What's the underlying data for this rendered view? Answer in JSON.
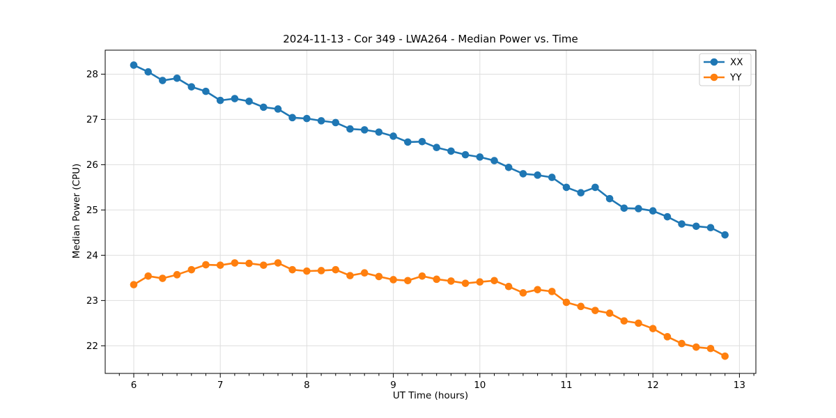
{
  "chart_data": {
    "type": "line",
    "title": "2024-11-13 - Cor 349 - LWA264 - Median Power vs. Time",
    "xlabel": "UT Time (hours)",
    "ylabel": "Median Power (CPU)",
    "xlim": [
      5.67,
      13.19
    ],
    "ylim": [
      21.39,
      28.53
    ],
    "xticks": [
      6,
      7,
      8,
      9,
      10,
      11,
      12,
      13
    ],
    "yticks": [
      22,
      23,
      24,
      25,
      26,
      27,
      28
    ],
    "x_minor_step": 0.1666667,
    "grid": true,
    "legend": {
      "position": "upper right"
    },
    "x": [
      6.0,
      6.167,
      6.333,
      6.5,
      6.667,
      6.833,
      7.0,
      7.167,
      7.333,
      7.5,
      7.667,
      7.833,
      8.0,
      8.167,
      8.333,
      8.5,
      8.667,
      8.833,
      9.0,
      9.167,
      9.333,
      9.5,
      9.667,
      9.833,
      10.0,
      10.167,
      10.333,
      10.5,
      10.667,
      10.833,
      11.0,
      11.167,
      11.333,
      11.5,
      11.667,
      11.833,
      12.0,
      12.167,
      12.333,
      12.5,
      12.667,
      12.833
    ],
    "series": [
      {
        "name": "XX",
        "color": "#1f77b4",
        "values": [
          28.2,
          28.05,
          27.86,
          27.91,
          27.72,
          27.62,
          27.42,
          27.46,
          27.4,
          27.27,
          27.23,
          27.04,
          27.02,
          26.97,
          26.93,
          26.79,
          26.77,
          26.72,
          26.63,
          26.5,
          26.51,
          26.38,
          26.3,
          26.22,
          26.17,
          26.09,
          25.94,
          25.8,
          25.77,
          25.72,
          25.5,
          25.38,
          25.5,
          25.25,
          25.04,
          25.03,
          24.98,
          24.85,
          24.69,
          24.64,
          24.61,
          24.45
        ]
      },
      {
        "name": "YY",
        "color": "#ff7f0e",
        "values": [
          23.35,
          23.54,
          23.49,
          23.57,
          23.68,
          23.79,
          23.78,
          23.83,
          23.82,
          23.78,
          23.83,
          23.68,
          23.65,
          23.66,
          23.68,
          23.55,
          23.61,
          23.53,
          23.46,
          23.44,
          23.54,
          23.47,
          23.43,
          23.38,
          23.41,
          23.44,
          23.31,
          23.17,
          23.24,
          23.2,
          22.96,
          22.87,
          22.78,
          22.72,
          22.55,
          22.5,
          22.38,
          22.2,
          22.05,
          21.97,
          21.94,
          21.77
        ]
      }
    ]
  },
  "colors": {
    "grid": "#dedede",
    "spine": "#000000",
    "tick": "#000000",
    "legend_border": "#cccccc",
    "legend_bg": "rgba(255,255,255,0.85)"
  }
}
